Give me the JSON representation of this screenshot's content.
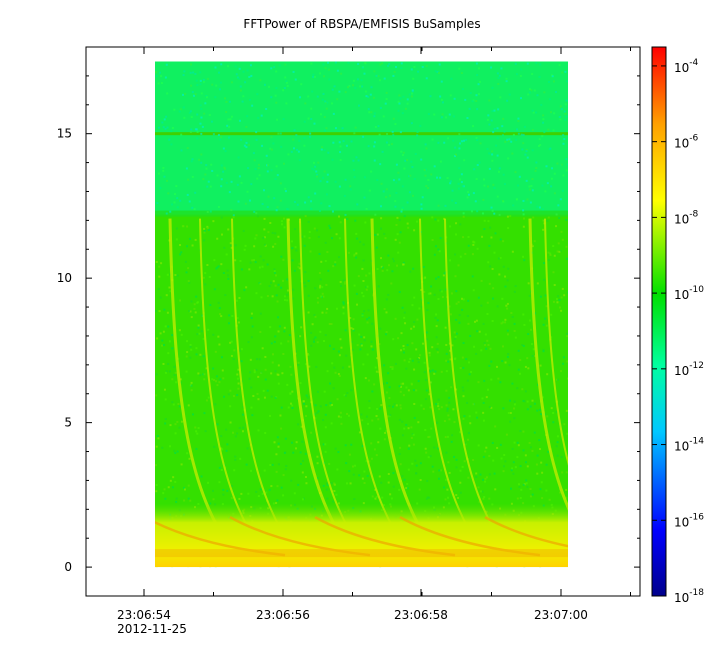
{
  "chart_data": {
    "type": "heatmap",
    "title": "FFTPower of RBSPA/EMFISIS  BuSamples",
    "xlabel": "",
    "ylabel": "",
    "x_ticks": [
      "23:06:54",
      "23:06:56",
      "23:06:58",
      "23:07:00"
    ],
    "x_date_label": "2012-11-25",
    "y_ticks": [
      0,
      5,
      10,
      15
    ],
    "ylim": [
      -1,
      18
    ],
    "data_yrange": [
      0,
      17.5
    ],
    "colorbar": {
      "scale": "log",
      "range": [
        -18,
        -3.5
      ],
      "tick_exponents": [
        -4,
        -6,
        -8,
        -10,
        -12,
        -14,
        -16,
        -18
      ],
      "colors": [
        "#00008b",
        "#0000ff",
        "#00c0ff",
        "#00ff80",
        "#00e000",
        "#ffff00",
        "#ffa000",
        "#ff0000"
      ]
    },
    "features": {
      "background_exponent": -11.5,
      "upper_band_exponent": -12.5,
      "upper_band_start": 12.2,
      "line_at": 15.0,
      "low_freq_band_top": 2.2
    }
  }
}
